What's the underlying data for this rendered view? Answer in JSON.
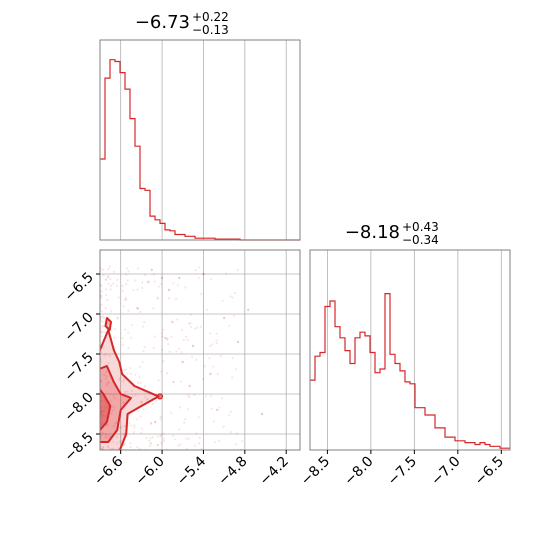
{
  "chart_data": [
    {
      "panel": "marginal-x",
      "type": "histogram",
      "title": {
        "value": "−6.73",
        "plus": "+0.22",
        "minus": "−0.13"
      },
      "xlim": [
        -6.9,
        -4.0
      ],
      "grid": true,
      "bins_start": -6.9,
      "bin_width": 0.0725,
      "counts": [
        0.44,
        0.88,
        0.98,
        0.97,
        0.91,
        0.82,
        0.66,
        0.51,
        0.28,
        0.27,
        0.13,
        0.11,
        0.09,
        0.055,
        0.05,
        0.03,
        0.03,
        0.02,
        0.02,
        0.01,
        0.01,
        0.01,
        0.01,
        0.005,
        0.005,
        0.005,
        0.005,
        0.005,
        0,
        0,
        0,
        0,
        0,
        0,
        0,
        0,
        0,
        0,
        0,
        0
      ]
    },
    {
      "panel": "marginal-y",
      "type": "histogram",
      "title": {
        "value": "−8.18",
        "plus": "+0.43",
        "minus": "−0.34"
      },
      "xlim": [
        -8.7,
        -6.4
      ],
      "xticks": [
        "−8.5",
        "−8.0",
        "−7.5",
        "−7.0",
        "−6.5"
      ],
      "xtick_values": [
        -8.5,
        -8.0,
        -7.5,
        -7.0,
        -6.5
      ],
      "grid": true,
      "bins_start": -8.7,
      "bin_width": 0.0575,
      "counts": [
        0.38,
        0.51,
        0.53,
        0.78,
        0.81,
        0.67,
        0.61,
        0.54,
        0.47,
        0.61,
        0.64,
        0.62,
        0.53,
        0.42,
        0.44,
        0.85,
        0.52,
        0.47,
        0.43,
        0.37,
        0.36,
        0.23,
        0.23,
        0.19,
        0.19,
        0.12,
        0.12,
        0.07,
        0.07,
        0.05,
        0.05,
        0.04,
        0.04,
        0.03,
        0.04,
        0.03,
        0.02,
        0.02,
        0.01,
        0.01
      ]
    },
    {
      "panel": "joint",
      "type": "scatter",
      "xlim": [
        -6.9,
        -4.0
      ],
      "ylim": [
        -8.7,
        -6.2
      ],
      "xticks": [
        "−6.6",
        "−6.0",
        "−5.4",
        "−4.8",
        "−4.2"
      ],
      "xtick_values": [
        -6.6,
        -6.0,
        -5.4,
        -4.8,
        -4.2
      ],
      "yticks": [
        "−6.5",
        "−7.0",
        "−7.5",
        "−8.0",
        "−8.5"
      ],
      "ytick_values": [
        -6.5,
        -7.0,
        -7.5,
        -8.0,
        -8.5
      ],
      "grid": true,
      "contour_levels": 3,
      "outliers": [
        [
          -6.35,
          -6.93
        ],
        [
          -6.2,
          -6.6
        ],
        [
          -6.15,
          -6.45
        ],
        [
          -6.0,
          -6.55
        ],
        [
          -5.9,
          -6.7
        ],
        [
          -5.85,
          -7.1
        ],
        [
          -5.75,
          -6.55
        ],
        [
          -5.7,
          -7.6
        ],
        [
          -5.6,
          -7.9
        ],
        [
          -5.55,
          -7.4
        ],
        [
          -5.4,
          -6.5
        ],
        [
          -5.3,
          -7.75
        ],
        [
          -5.2,
          -8.2
        ],
        [
          -5.1,
          -7.05
        ],
        [
          -4.9,
          -7.35
        ],
        [
          -4.75,
          -6.95
        ],
        [
          -4.55,
          -8.25
        ],
        [
          -6.3,
          -8.1
        ],
        [
          -6.1,
          -8.35
        ],
        [
          -5.95,
          -7.3
        ]
      ]
    }
  ],
  "colors": {
    "series": "#d62728",
    "grid": "#b0b0b0",
    "axes": "#808080"
  }
}
